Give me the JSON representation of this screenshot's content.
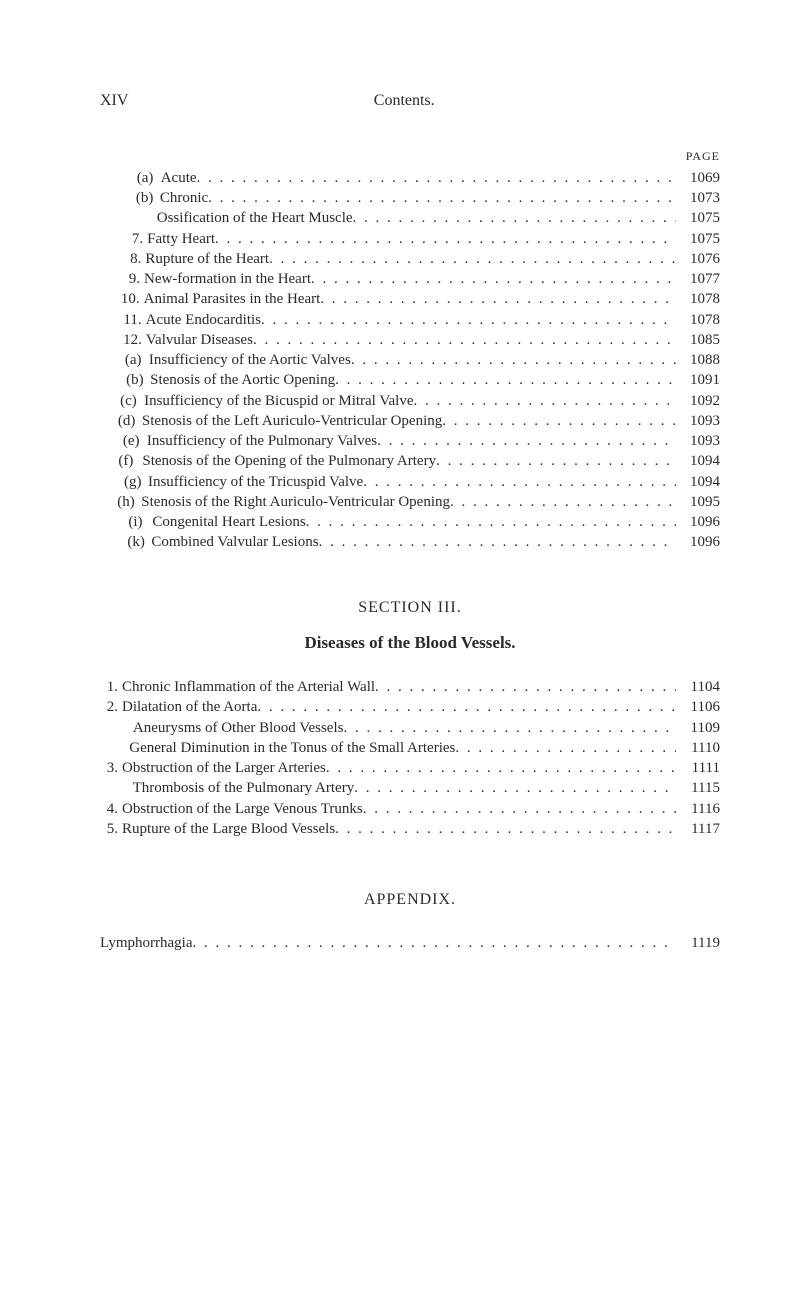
{
  "header": {
    "page_roman": "XIV",
    "title": "Contents.",
    "page_label": "PAGE"
  },
  "block_a": [
    {
      "indent": 2,
      "marker": "(a)",
      "label": "Acute",
      "page": "1069"
    },
    {
      "indent": 2,
      "marker": "(b)",
      "label": "Chronic",
      "page": "1073"
    },
    {
      "indent": 2,
      "marker": "",
      "label": "Ossification of the Heart Muscle",
      "page": "1075"
    },
    {
      "indent": 1,
      "marker": "7.",
      "label": "Fatty Heart",
      "page": "1075"
    },
    {
      "indent": 1,
      "marker": "8.",
      "label": "Rupture of the Heart",
      "page": "1076"
    },
    {
      "indent": 1,
      "marker": "9.",
      "label": "New-formation in the Heart",
      "page": "1077"
    },
    {
      "indent": 1,
      "marker": "10.",
      "label": "Animal Parasites in the Heart",
      "page": "1078"
    },
    {
      "indent": 1,
      "marker": "11.",
      "label": "Acute Endocarditis",
      "page": "1078"
    },
    {
      "indent": 1,
      "marker": "12.",
      "label": "Valvular Diseases",
      "page": "1085"
    },
    {
      "indent": 2,
      "marker": "(a)",
      "label": "Insufficiency of the Aortic Valves",
      "page": "1088"
    },
    {
      "indent": 2,
      "marker": "(b)",
      "label": "Stenosis of the Aortic Opening",
      "page": "1091"
    },
    {
      "indent": 2,
      "marker": "(c)",
      "label": "Insufficiency of the Bicuspid or Mitral Valve",
      "page": "1092"
    },
    {
      "indent": 2,
      "marker": "(d)",
      "label": "Stenosis of the Left Auriculo-Ventricular Opening",
      "page": "1093"
    },
    {
      "indent": 2,
      "marker": "(e)",
      "label": "Insufficiency of the Pulmonary Valves",
      "page": "1093"
    },
    {
      "indent": 2,
      "marker": "(f)",
      "label": "Stenosis of the Opening of the Pulmonary Artery",
      "page": "1094"
    },
    {
      "indent": 2,
      "marker": "(g)",
      "label": "Insufficiency of the Tricuspid Valve",
      "page": "1094"
    },
    {
      "indent": 2,
      "marker": "(h)",
      "label": "Stenosis of the Right Auriculo-Ventricular Opening",
      "page": "1095"
    },
    {
      "indent": 2,
      "marker": "(i)",
      "label": "Congenital Heart Lesions",
      "page": "1096"
    },
    {
      "indent": 2,
      "marker": "(k)",
      "label": "Combined Valvular Lesions",
      "page": "1096"
    }
  ],
  "section3": {
    "title": "SECTION III.",
    "subtitle": "Diseases of the Blood Vessels."
  },
  "block_b": [
    {
      "indent": 0,
      "marker": "1.",
      "label": "Chronic Inflammation of the Arterial Wall",
      "page": "1104"
    },
    {
      "indent": 0,
      "marker": "2.",
      "label": "Dilatation of the Aorta",
      "page": "1106"
    },
    {
      "indent": 1,
      "marker": "",
      "label": "Aneurysms of Other Blood Vessels",
      "page": "1109"
    },
    {
      "indent": 1,
      "marker": "",
      "label": "General Diminution in the Tonus of the Small Arteries",
      "page": "1110"
    },
    {
      "indent": 0,
      "marker": "3.",
      "label": "Obstruction of the Larger Arteries",
      "page": "1111"
    },
    {
      "indent": 1,
      "marker": "",
      "label": "Thrombosis of the Pulmonary Artery",
      "page": "1115"
    },
    {
      "indent": 0,
      "marker": "4.",
      "label": "Obstruction of the Large Venous Trunks",
      "page": "1116"
    },
    {
      "indent": 0,
      "marker": "5.",
      "label": "Rupture of the Large Blood Vessels",
      "page": "1117"
    }
  ],
  "appendix": {
    "title": "APPENDIX.",
    "items": [
      {
        "label": "Lymphorrhagia",
        "page": "1119"
      }
    ]
  }
}
